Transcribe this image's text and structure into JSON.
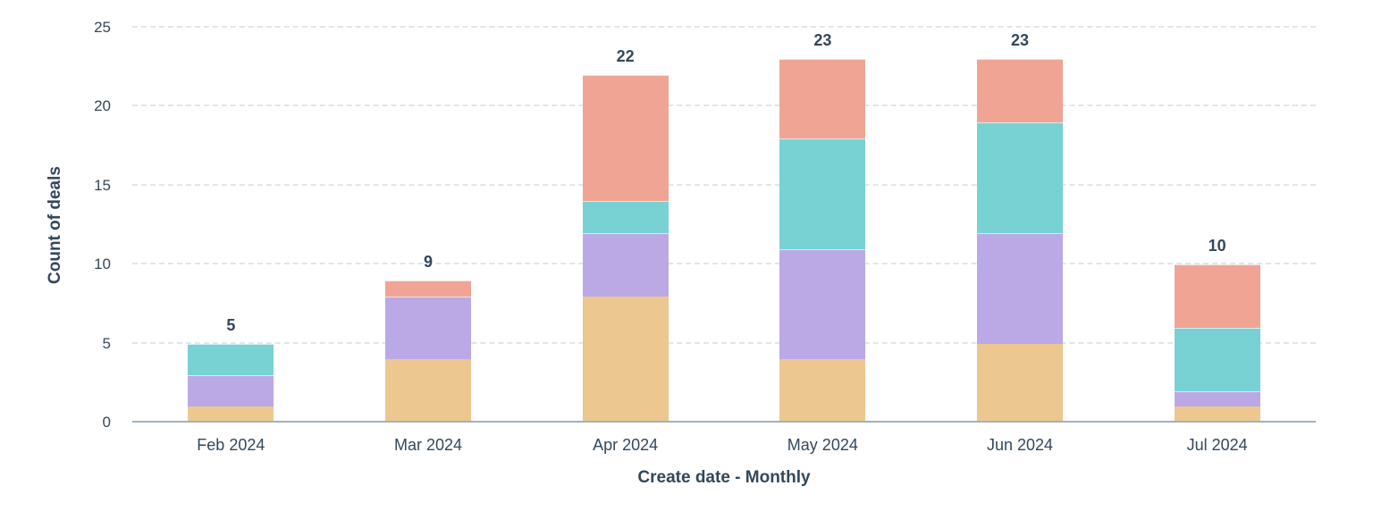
{
  "chart_data": {
    "type": "bar",
    "stacked": true,
    "title": "",
    "xlabel": "Create date - Monthly",
    "ylabel": "Count of deals",
    "categories": [
      "Feb 2024",
      "Mar 2024",
      "Apr 2024",
      "May 2024",
      "Jun 2024",
      "Jul 2024"
    ],
    "series": [
      {
        "name": "tan",
        "color": "#edc790",
        "values": [
          1,
          4,
          8,
          4,
          5,
          1
        ]
      },
      {
        "name": "purple",
        "color": "#baa9e5",
        "values": [
          2,
          4,
          4,
          7,
          7,
          1
        ]
      },
      {
        "name": "teal",
        "color": "#78d1d3",
        "values": [
          2,
          0,
          2,
          7,
          7,
          4
        ]
      },
      {
        "name": "salmon",
        "color": "#f0a594",
        "values": [
          0,
          1,
          8,
          5,
          4,
          4
        ]
      }
    ],
    "totals": [
      5,
      9,
      22,
      23,
      23,
      10
    ],
    "yticks": [
      0,
      5,
      10,
      15,
      20,
      25
    ],
    "ylim": [
      0,
      25
    ],
    "grid": "dashed-horizontal",
    "legend": "none"
  },
  "colors": {
    "text": "#33475b",
    "gridline": "#e0e5ed",
    "axis_line": "#9fb1c3",
    "background": "#ffffff"
  }
}
